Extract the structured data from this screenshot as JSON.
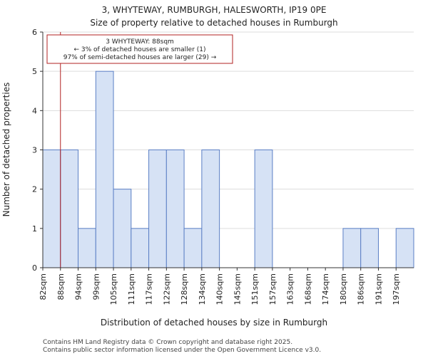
{
  "header": {
    "title": "3, WHYTEWAY, RUMBURGH, HALESWORTH, IP19 0PE",
    "subtitle": "Size of property relative to detached houses in Rumburgh"
  },
  "chart_data": {
    "type": "bar",
    "categories": [
      "82sqm",
      "88sqm",
      "94sqm",
      "99sqm",
      "105sqm",
      "111sqm",
      "117sqm",
      "122sqm",
      "128sqm",
      "134sqm",
      "140sqm",
      "145sqm",
      "151sqm",
      "157sqm",
      "163sqm",
      "168sqm",
      "174sqm",
      "180sqm",
      "186sqm",
      "191sqm",
      "197sqm"
    ],
    "values": [
      3,
      3,
      1,
      5,
      2,
      1,
      3,
      3,
      1,
      3,
      0,
      0,
      3,
      0,
      0,
      0,
      0,
      1,
      1,
      0,
      1
    ],
    "xlabel": "Distribution of detached houses by size in Rumburgh",
    "ylabel": "Number of detached properties",
    "ylim": [
      0,
      6
    ],
    "yticks": [
      "0",
      "1",
      "2",
      "3",
      "4",
      "5",
      "6"
    ],
    "grid": true,
    "bar_color": "#d6e2f5",
    "bar_edge_color": "#5b7fc5",
    "marker": {
      "category": "88sqm",
      "color": "#b22222"
    },
    "annotation": {
      "lines": [
        "3 WHYTEWAY: 88sqm",
        "← 3% of detached houses are smaller (1)",
        "97% of semi-detached houses are larger (29) →"
      ],
      "border_color": "#b22222"
    }
  },
  "footer": {
    "line1": "Contains HM Land Registry data © Crown copyright and database right 2025.",
    "line2": "Contains public sector information licensed under the Open Government Licence v3.0."
  }
}
